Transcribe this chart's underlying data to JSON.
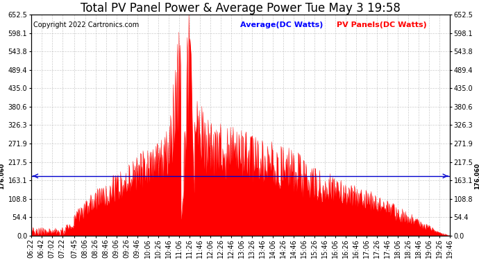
{
  "title": "Total PV Panel Power & Average Power Tue May 3 19:58",
  "copyright": "Copyright 2022 Cartronics.com",
  "legend_avg": "Average(DC Watts)",
  "legend_pv": "PV Panels(DC Watts)",
  "avg_color": "#0000ff",
  "pv_color": "#ff0000",
  "avg_line_value": 176.06,
  "y_ticks": [
    0.0,
    54.4,
    108.8,
    163.1,
    217.5,
    271.9,
    326.3,
    380.6,
    435.0,
    489.4,
    543.8,
    598.1,
    652.5
  ],
  "y_min": 0.0,
  "y_max": 652.5,
  "background_color": "#ffffff",
  "plot_bg_color": "#ffffff",
  "grid_color": "#aaaaaa",
  "title_fontsize": 12,
  "copyright_fontsize": 7,
  "tick_fontsize": 7,
  "avg_line_color": "#0000cc",
  "x_labels": [
    "06:22",
    "06:42",
    "07:02",
    "07:22",
    "07:45",
    "08:06",
    "08:26",
    "08:46",
    "09:06",
    "09:26",
    "09:46",
    "10:06",
    "10:26",
    "10:46",
    "11:06",
    "11:26",
    "11:46",
    "12:06",
    "12:26",
    "12:46",
    "13:06",
    "13:26",
    "13:46",
    "14:06",
    "14:26",
    "14:46",
    "15:06",
    "15:26",
    "15:46",
    "16:06",
    "16:26",
    "16:46",
    "17:06",
    "17:26",
    "17:46",
    "18:06",
    "18:26",
    "18:46",
    "19:06",
    "19:26",
    "19:46"
  ]
}
